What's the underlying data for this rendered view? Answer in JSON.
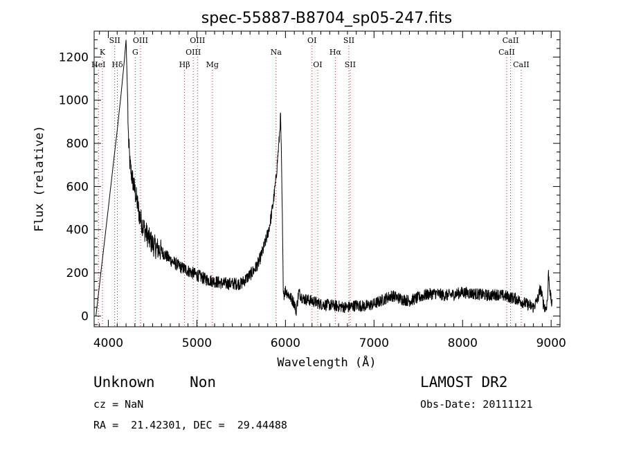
{
  "chart_data": {
    "type": "line",
    "title": "spec-55887-B8704_sp05-247.fits",
    "xlabel": "Wavelength (Å)",
    "ylabel": "Flux (relative)",
    "xlim": [
      3840,
      9100
    ],
    "ylim": [
      -50,
      1320
    ],
    "xticks": [
      4000,
      5000,
      6000,
      7000,
      8000,
      9000
    ],
    "yticks": [
      0,
      200,
      400,
      600,
      800,
      1000,
      1200
    ],
    "grid": false,
    "series": [
      {
        "x": [
          3860,
          4000,
          4100,
          4150,
          4180,
          4195,
          4205,
          4215,
          4222,
          4230,
          4245,
          4265,
          4290,
          4320,
          4350,
          4380,
          4420,
          4470,
          4530,
          4600,
          4700,
          4800,
          4900,
          5000,
          5100,
          5200,
          5300,
          5400,
          5500,
          5600,
          5650,
          5700,
          5750,
          5800,
          5830,
          5860,
          5890,
          5910,
          5930,
          5945,
          5955,
          5965,
          5975,
          5985,
          6000,
          6050,
          6100,
          6120,
          6150,
          6200,
          6300,
          6400,
          6500,
          6600,
          6700,
          6800,
          6900,
          7000,
          7100,
          7200,
          7300,
          7400,
          7500,
          7600,
          7700,
          7800,
          7900,
          8000,
          8100,
          8200,
          8300,
          8400,
          8500,
          8600,
          8700,
          8800,
          8850,
          8880,
          8910,
          8940,
          8960,
          8970,
          8990,
          9010
        ],
        "values": [
          0,
          500,
          860,
          1050,
          1180,
          1260,
          1300,
          1200,
          900,
          800,
          700,
          650,
          600,
          540,
          470,
          430,
          390,
          350,
          320,
          300,
          260,
          230,
          210,
          190,
          170,
          160,
          150,
          150,
          150,
          190,
          215,
          250,
          310,
          380,
          440,
          520,
          620,
          720,
          820,
          930,
          720,
          450,
          140,
          100,
          120,
          90,
          60,
          20,
          110,
          80,
          70,
          55,
          50,
          45,
          40,
          50,
          45,
          55,
          75,
          95,
          80,
          70,
          85,
          100,
          105,
          95,
          100,
          110,
          105,
          100,
          95,
          100,
          90,
          80,
          60,
          40,
          80,
          130,
          60,
          30,
          80,
          200,
          100,
          50
        ]
      }
    ],
    "lines": [
      {
        "label": "SII",
        "x": 4072,
        "row": 1
      },
      {
        "label": "K",
        "x": 3934,
        "row": 2
      },
      {
        "label": "HeI",
        "x": 3889,
        "row": 3
      },
      {
        "label": "Hδ",
        "x": 4102,
        "row": 3
      },
      {
        "label": "OIII",
        "x": 4363,
        "row": 1
      },
      {
        "label": "G",
        "x": 4304,
        "row": 2
      },
      {
        "label": "OIII",
        "x": 5007,
        "row": 1
      },
      {
        "label": "OIII",
        "x": 4959,
        "row": 2
      },
      {
        "label": "Hβ",
        "x": 4861,
        "row": 3
      },
      {
        "label": "Mg",
        "x": 5175,
        "row": 3
      },
      {
        "label": "Na",
        "x": 5894,
        "row": 2
      },
      {
        "label": "OI",
        "x": 6300,
        "row": 1
      },
      {
        "label": "OI",
        "x": 6364,
        "row": 3
      },
      {
        "label": "Hα",
        "x": 6563,
        "row": 2
      },
      {
        "label": "SII",
        "x": 6716,
        "row": 1
      },
      {
        "label": "SII",
        "x": 6731,
        "row": 3
      },
      {
        "label": "CaII",
        "x": 8542,
        "row": 1
      },
      {
        "label": "CaII",
        "x": 8498,
        "row": 2
      },
      {
        "label": "CaII",
        "x": 8662,
        "row": 3
      }
    ]
  },
  "info": {
    "classification": "Unknown    Non",
    "survey": "LAMOST DR2",
    "redshift": "cz = NaN",
    "obs_date": "Obs-Date: 20111121",
    "coords": "RA =  21.42301, DEC =  29.44488"
  }
}
